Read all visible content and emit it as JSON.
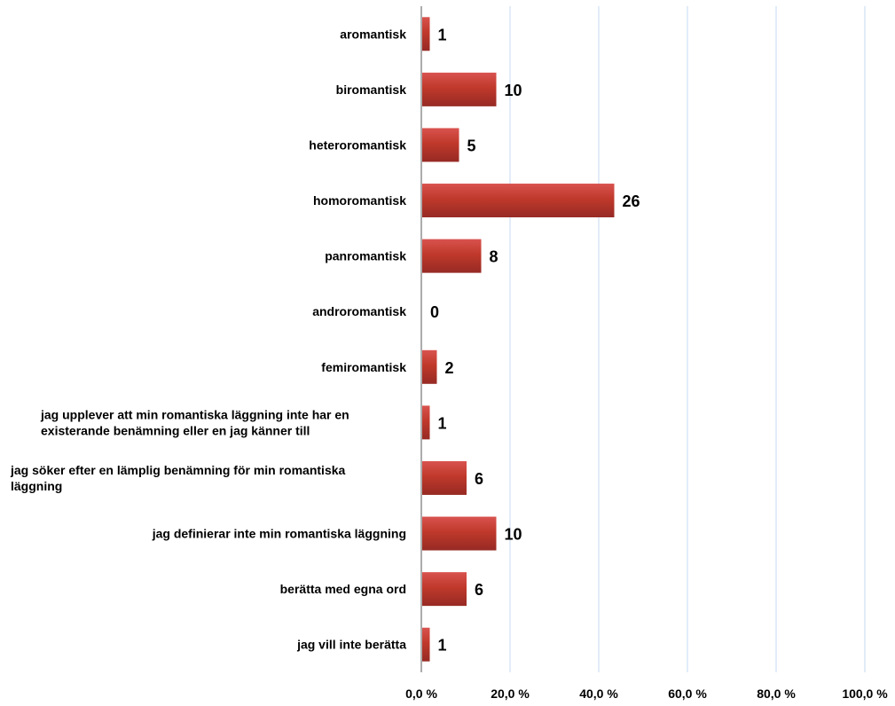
{
  "chart_data": {
    "type": "bar",
    "orientation": "horizontal",
    "categories": [
      [
        "aromantisk"
      ],
      [
        "biromantisk"
      ],
      [
        "heteroromantisk"
      ],
      [
        "homoromantisk"
      ],
      [
        "panromantisk"
      ],
      [
        "androromantisk"
      ],
      [
        "femiromantisk"
      ],
      [
        "jag upplever att min romantiska läggning inte har en",
        "existerande benämning eller en jag känner till"
      ],
      [
        "jag söker efter en lämplig benämning för min romantiska",
        "läggning"
      ],
      [
        "jag definierar inte min romantiska läggning"
      ],
      [
        "berätta med egna ord"
      ],
      [
        "jag vill inte berätta"
      ]
    ],
    "values": [
      1.7,
      16.7,
      8.3,
      43.3,
      13.3,
      0,
      3.3,
      1.7,
      10.0,
      16.7,
      10.0,
      1.7
    ],
    "data_labels": [
      "1",
      "10",
      "5",
      "26",
      "8",
      "0",
      "2",
      "1",
      "6",
      "10",
      "6",
      "1"
    ],
    "xlim": [
      0,
      100
    ],
    "x_ticks": [
      "0,0 %",
      "20,0 %",
      "40,0 %",
      "60,0 %",
      "80,0 %",
      "100,0 %"
    ],
    "title": "",
    "xlabel": "",
    "ylabel": "",
    "grid": "vertical",
    "legend": "none",
    "colors": {
      "bar_light": "#d9534f",
      "bar_mid": "#c0392b",
      "bar_dark": "#962a24",
      "grid": "#c6d9f1",
      "axis": "#595959"
    }
  }
}
